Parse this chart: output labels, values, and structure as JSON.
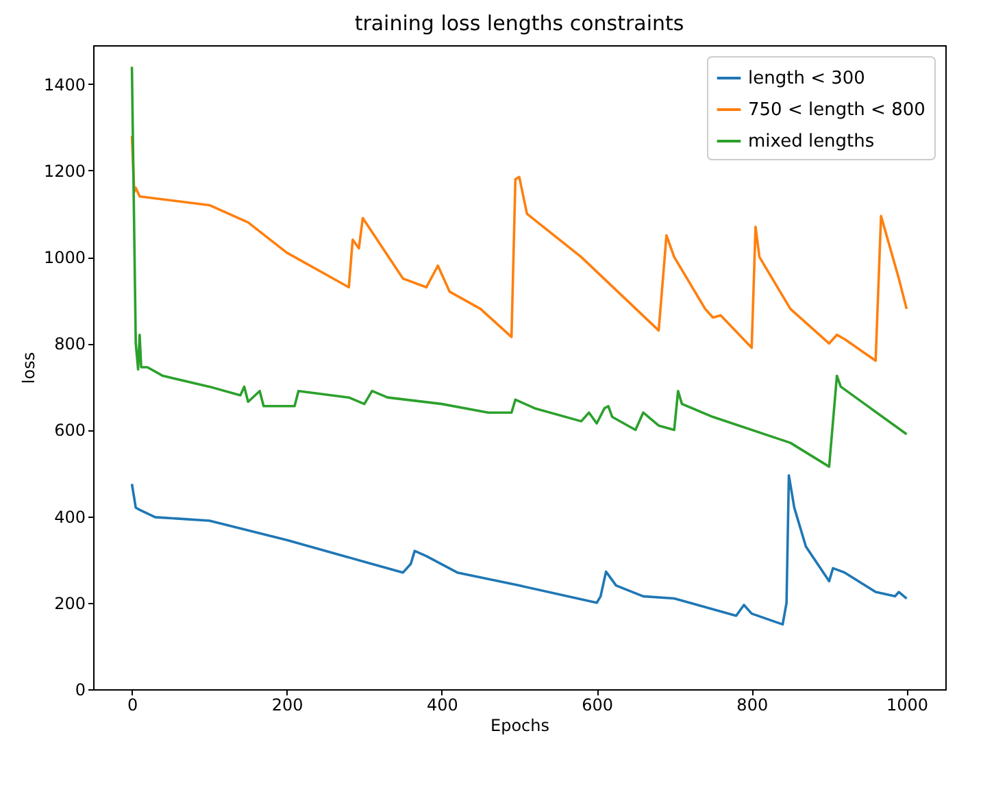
{
  "chart_data": {
    "type": "line",
    "title": "training loss lengths constraints",
    "xlabel": "Epochs",
    "ylabel": "loss",
    "xlim": [
      -50,
      1050
    ],
    "ylim": [
      0,
      1490
    ],
    "xticks": [
      0,
      200,
      400,
      600,
      800,
      1000
    ],
    "yticks": [
      0,
      200,
      400,
      600,
      800,
      1000,
      1200,
      1400
    ],
    "grid": false,
    "legend": "top right",
    "series": [
      {
        "name": "length < 300",
        "color": "#1f77b4",
        "x": [
          0,
          5,
          10,
          30,
          100,
          200,
          300,
          350,
          360,
          365,
          380,
          420,
          500,
          600,
          605,
          612,
          625,
          660,
          700,
          780,
          790,
          800,
          840,
          845,
          848,
          855,
          870,
          900,
          905,
          920,
          960,
          985,
          990,
          1000
        ],
        "values": [
          475,
          420,
          415,
          398,
          390,
          345,
          295,
          270,
          290,
          320,
          308,
          270,
          240,
          200,
          215,
          272,
          240,
          215,
          210,
          170,
          195,
          175,
          150,
          200,
          495,
          420,
          330,
          250,
          280,
          270,
          225,
          215,
          225,
          210
        ]
      },
      {
        "name": "750 < length < 800",
        "color": "#ff7f0e",
        "x": [
          0,
          3,
          5,
          10,
          100,
          150,
          200,
          280,
          285,
          293,
          298,
          350,
          380,
          395,
          410,
          450,
          490,
          495,
          500,
          510,
          580,
          680,
          685,
          690,
          700,
          740,
          750,
          760,
          800,
          805,
          810,
          850,
          900,
          910,
          920,
          960,
          967,
          990,
          1000
        ],
        "values": [
          1280,
          1150,
          1160,
          1140,
          1120,
          1080,
          1010,
          930,
          1040,
          1020,
          1090,
          950,
          930,
          980,
          920,
          880,
          815,
          1180,
          1185,
          1100,
          1000,
          830,
          940,
          1050,
          1000,
          880,
          860,
          865,
          790,
          1070,
          1000,
          880,
          800,
          820,
          810,
          760,
          1095,
          950,
          880
        ]
      },
      {
        "name": "mixed lengths",
        "color": "#2ca02c",
        "x": [
          0,
          5,
          8,
          10,
          12,
          20,
          40,
          100,
          140,
          145,
          150,
          165,
          170,
          210,
          215,
          280,
          300,
          310,
          330,
          400,
          460,
          490,
          495,
          520,
          580,
          590,
          600,
          610,
          615,
          620,
          650,
          660,
          680,
          700,
          705,
          710,
          750,
          850,
          900,
          910,
          915,
          1000
        ],
        "values": [
          1440,
          800,
          740,
          820,
          745,
          745,
          725,
          700,
          680,
          700,
          665,
          690,
          655,
          655,
          690,
          675,
          660,
          690,
          675,
          660,
          640,
          640,
          670,
          650,
          620,
          640,
          615,
          650,
          655,
          630,
          600,
          640,
          610,
          600,
          690,
          660,
          630,
          570,
          515,
          725,
          700,
          590
        ]
      }
    ]
  }
}
